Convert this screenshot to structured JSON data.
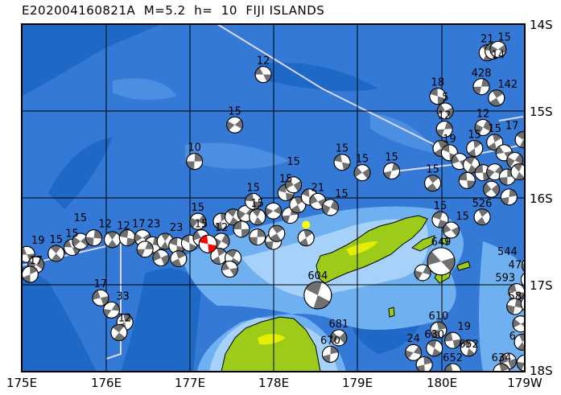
{
  "title": "E202004160821A  M=5.2  h=  10  FIJI ISLANDS",
  "map": {
    "region": "FIJI ISLANDS",
    "lon_range": [
      175,
      181
    ],
    "lat_range_south": [
      14,
      18
    ],
    "x_ticks": [
      "175E",
      "176E",
      "177E",
      "178E",
      "179E",
      "180E",
      "179W"
    ],
    "y_ticks": [
      "14S",
      "15S",
      "16S",
      "17S",
      "18S"
    ],
    "colors": {
      "ocean": "#3479d6",
      "deep": "#1e68c6",
      "shallow": "#6fb0f0",
      "very_shallow": "#a6d2fa",
      "land": "#9ccb1a",
      "land_high": "#e6ef00",
      "plate_boundary": "#d8d8f8",
      "mechanism_fill": "#707070",
      "target_event": "#ff0000",
      "marker": "#ffff00"
    },
    "target_event": {
      "lon": 177.22,
      "lat": 16.53
    },
    "marker": {
      "lon": 178.39,
      "lat": 16.31
    },
    "events": [
      {
        "lon": 177.88,
        "lat": 14.58,
        "depth": "12"
      },
      {
        "lon": 177.54,
        "lat": 15.16,
        "depth": "15"
      },
      {
        "lon": 177.06,
        "lat": 15.58,
        "depth": "10"
      },
      {
        "lon": 180.55,
        "lat": 14.33,
        "depth": "21"
      },
      {
        "lon": 180.62,
        "lat": 14.31,
        "depth": "15"
      },
      {
        "lon": 180.68,
        "lat": 14.29,
        "depth": "14"
      },
      {
        "lon": 180.48,
        "lat": 14.72,
        "depth": "428"
      },
      {
        "lon": 180.66,
        "lat": 14.85,
        "depth": "142"
      },
      {
        "lon": 179.96,
        "lat": 14.83,
        "depth": "18"
      },
      {
        "lon": 180.05,
        "lat": 15.0,
        "depth": "5"
      },
      {
        "lon": 180.04,
        "lat": 15.21,
        "depth": "12"
      },
      {
        "lon": 180.0,
        "lat": 15.43,
        "depth": ""
      },
      {
        "lon": 180.1,
        "lat": 15.48,
        "depth": "19"
      },
      {
        "lon": 180.22,
        "lat": 15.58,
        "depth": ""
      },
      {
        "lon": 180.5,
        "lat": 15.19,
        "depth": "12"
      },
      {
        "lon": 180.64,
        "lat": 15.36,
        "depth": "15"
      },
      {
        "lon": 180.98,
        "lat": 15.33,
        "depth": "17"
      },
      {
        "lon": 180.75,
        "lat": 15.48,
        "depth": ""
      },
      {
        "lon": 180.88,
        "lat": 15.57,
        "depth": ""
      },
      {
        "lon": 180.4,
        "lat": 15.43,
        "depth": "15"
      },
      {
        "lon": 180.36,
        "lat": 15.62,
        "depth": ""
      },
      {
        "lon": 180.5,
        "lat": 15.71,
        "depth": ""
      },
      {
        "lon": 180.64,
        "lat": 15.7,
        "depth": ""
      },
      {
        "lon": 180.79,
        "lat": 15.76,
        "depth": ""
      },
      {
        "lon": 180.93,
        "lat": 15.7,
        "depth": ""
      },
      {
        "lon": 180.31,
        "lat": 15.8,
        "depth": ""
      },
      {
        "lon": 180.6,
        "lat": 15.9,
        "depth": ""
      },
      {
        "lon": 180.81,
        "lat": 15.99,
        "depth": ""
      },
      {
        "lon": 179.9,
        "lat": 15.83,
        "depth": "15"
      },
      {
        "lon": 178.82,
        "lat": 15.59,
        "depth": "15"
      },
      {
        "lon": 179.06,
        "lat": 15.71,
        "depth": "15"
      },
      {
        "lon": 179.41,
        "lat": 15.69,
        "depth": "15"
      },
      {
        "lon": 180.49,
        "lat": 16.22,
        "depth": "526"
      },
      {
        "lon": 179.99,
        "lat": 16.25,
        "depth": "15"
      },
      {
        "lon": 180.12,
        "lat": 16.37,
        "depth": "15"
      },
      {
        "lon": 181.06,
        "lat": 16.78,
        "depth": "544"
      },
      {
        "lon": 181.15,
        "lat": 16.93,
        "depth": "47"
      },
      {
        "lon": 178.53,
        "lat": 17.12,
        "depth": "604"
      },
      {
        "lon": 180.0,
        "lat": 16.73,
        "depth": "649"
      },
      {
        "lon": 179.78,
        "lat": 16.86,
        "depth": ""
      },
      {
        "lon": 179.97,
        "lat": 17.52,
        "depth": "610"
      },
      {
        "lon": 179.92,
        "lat": 17.73,
        "depth": "630"
      },
      {
        "lon": 180.14,
        "lat": 17.64,
        "depth": "19"
      },
      {
        "lon": 179.67,
        "lat": 17.78,
        "depth": "24"
      },
      {
        "lon": 179.8,
        "lat": 17.92,
        "depth": ""
      },
      {
        "lon": 180.33,
        "lat": 17.73,
        "depth": "652"
      },
      {
        "lon": 180.14,
        "lat": 18.0,
        "depth": "652"
      },
      {
        "lon": 178.78,
        "lat": 17.61,
        "depth": "681"
      },
      {
        "lon": 178.68,
        "lat": 17.8,
        "depth": "670"
      },
      {
        "lon": 181.05,
        "lat": 16.94,
        "depth": ""
      },
      {
        "lon": 180.9,
        "lat": 17.08,
        "depth": "593"
      },
      {
        "lon": 181.15,
        "lat": 17.07,
        "depth": "58"
      },
      {
        "lon": 180.88,
        "lat": 17.25,
        "depth": ""
      },
      {
        "lon": 181.05,
        "lat": 17.22,
        "depth": ""
      },
      {
        "lon": 181.12,
        "lat": 17.4,
        "depth": ""
      },
      {
        "lon": 180.95,
        "lat": 17.45,
        "depth": ""
      },
      {
        "lon": 181.1,
        "lat": 17.58,
        "depth": ""
      },
      {
        "lon": 180.97,
        "lat": 17.66,
        "depth": ""
      },
      {
        "lon": 181.13,
        "lat": 17.76,
        "depth": ""
      },
      {
        "lon": 180.8,
        "lat": 17.88,
        "depth": ""
      },
      {
        "lon": 181.0,
        "lat": 17.9,
        "depth": ""
      },
      {
        "lon": 180.72,
        "lat": 18.0,
        "depth": "634"
      },
      {
        "lon": 181.12,
        "lat": 17.97,
        "depth": "6"
      },
      {
        "lon": 175.94,
        "lat": 17.15,
        "depth": "17"
      },
      {
        "lon": 176.07,
        "lat": 17.29,
        "depth": "33"
      },
      {
        "lon": 176.23,
        "lat": 17.43,
        "depth": "12"
      },
      {
        "lon": 176.16,
        "lat": 17.55,
        "depth": ""
      },
      {
        "lon": 175.06,
        "lat": 16.65,
        "depth": "19"
      },
      {
        "lon": 175.17,
        "lat": 16.77,
        "depth": "17"
      },
      {
        "lon": 175.1,
        "lat": 16.88,
        "depth": ""
      },
      {
        "lon": 175.41,
        "lat": 16.64,
        "depth": "15"
      },
      {
        "lon": 175.6,
        "lat": 16.57,
        "depth": "15"
      },
      {
        "lon": 175.7,
        "lat": 16.5,
        "depth": "15"
      },
      {
        "lon": 175.86,
        "lat": 16.46,
        "depth": "12"
      },
      {
        "lon": 176.08,
        "lat": 16.48,
        "depth": "12"
      },
      {
        "lon": 176.26,
        "lat": 16.46,
        "depth": "17"
      },
      {
        "lon": 176.44,
        "lat": 16.46,
        "depth": "23"
      },
      {
        "lon": 176.56,
        "lat": 16.54,
        "depth": ""
      },
      {
        "lon": 176.71,
        "lat": 16.5,
        "depth": "23"
      },
      {
        "lon": 176.85,
        "lat": 16.55,
        "depth": ""
      },
      {
        "lon": 176.66,
        "lat": 16.69,
        "depth": ""
      },
      {
        "lon": 176.47,
        "lat": 16.59,
        "depth": ""
      },
      {
        "lon": 176.87,
        "lat": 16.7,
        "depth": ""
      },
      {
        "lon": 177.0,
        "lat": 16.52,
        "depth": ""
      },
      {
        "lon": 177.14,
        "lat": 16.46,
        "depth": "15"
      },
      {
        "lon": 177.38,
        "lat": 16.5,
        "depth": "12"
      },
      {
        "lon": 177.35,
        "lat": 16.67,
        "depth": ""
      },
      {
        "lon": 177.52,
        "lat": 16.69,
        "depth": ""
      },
      {
        "lon": 177.48,
        "lat": 16.82,
        "depth": ""
      },
      {
        "lon": 177.1,
        "lat": 16.27,
        "depth": "15"
      },
      {
        "lon": 177.38,
        "lat": 16.27,
        "depth": ""
      },
      {
        "lon": 177.52,
        "lat": 16.22,
        "depth": ""
      },
      {
        "lon": 177.62,
        "lat": 16.36,
        "depth": ""
      },
      {
        "lon": 177.67,
        "lat": 16.18,
        "depth": ""
      },
      {
        "lon": 177.81,
        "lat": 16.45,
        "depth": ""
      },
      {
        "lon": 177.81,
        "lat": 16.22,
        "depth": "15"
      },
      {
        "lon": 177.76,
        "lat": 16.04,
        "depth": "15"
      },
      {
        "lon": 178.0,
        "lat": 16.15,
        "depth": ""
      },
      {
        "lon": 178.0,
        "lat": 16.5,
        "depth": ""
      },
      {
        "lon": 178.04,
        "lat": 16.41,
        "depth": ""
      },
      {
        "lon": 178.15,
        "lat": 15.94,
        "depth": "15"
      },
      {
        "lon": 178.24,
        "lat": 15.85,
        "depth": "15"
      },
      {
        "lon": 178.2,
        "lat": 16.2,
        "depth": ""
      },
      {
        "lon": 178.29,
        "lat": 16.08,
        "depth": ""
      },
      {
        "lon": 178.43,
        "lat": 15.99,
        "depth": ""
      },
      {
        "lon": 178.53,
        "lat": 16.04,
        "depth": "21"
      },
      {
        "lon": 178.68,
        "lat": 16.11,
        "depth": "15"
      },
      {
        "lon": 178.39,
        "lat": 16.46,
        "depth": ""
      }
    ]
  }
}
